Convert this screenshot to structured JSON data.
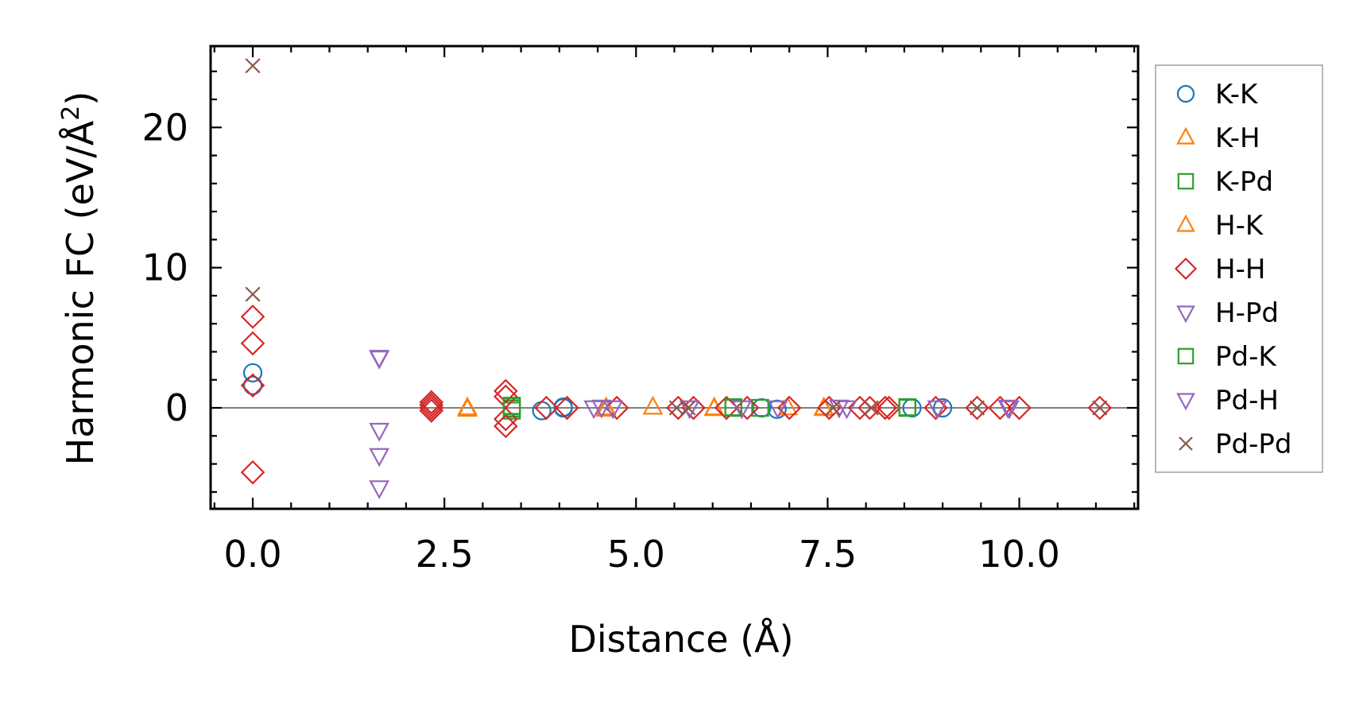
{
  "chart_data": {
    "type": "scatter",
    "xlabel": "Distance (Å)",
    "ylabel_main": "Harmonic FC (eV/Å",
    "ylabel_sup": "2",
    "ylabel_close": ")",
    "xlim": [
      -0.55,
      11.55
    ],
    "ylim": [
      -7.2,
      25.8
    ],
    "xticks": [
      0.0,
      2.5,
      5.0,
      7.5,
      10.0
    ],
    "xtick_labels": [
      "0.0",
      "2.5",
      "5.0",
      "7.5",
      "10.0"
    ],
    "yticks": [
      0,
      10,
      20
    ],
    "ytick_labels": [
      "0",
      "10",
      "20"
    ],
    "zero_line": 0,
    "grid": false,
    "legend_position": "outside-right",
    "series": [
      {
        "name": "K-K",
        "marker": "circle",
        "color": "#1f77b4",
        "points": [
          [
            0.0,
            2.5
          ],
          [
            0.0,
            1.6
          ],
          [
            3.77,
            -0.2
          ],
          [
            4.05,
            0.0
          ],
          [
            4.05,
            0.05
          ],
          [
            6.64,
            0.0
          ],
          [
            6.84,
            -0.1
          ],
          [
            8.6,
            0.0
          ],
          [
            9.0,
            0.0
          ]
        ]
      },
      {
        "name": "K-H",
        "marker": "triangle-up",
        "color": "#ff7f0e",
        "points": [
          [
            2.8,
            0.0
          ],
          [
            4.61,
            0.0
          ],
          [
            5.22,
            0.05
          ],
          [
            6.02,
            0.0
          ],
          [
            6.98,
            0.0
          ],
          [
            7.45,
            0.0
          ]
        ]
      },
      {
        "name": "K-Pd",
        "marker": "square",
        "color": "#2ca02c",
        "points": [
          [
            3.38,
            0.15
          ],
          [
            3.38,
            -0.05
          ],
          [
            3.38,
            -0.2
          ],
          [
            6.27,
            0.0
          ],
          [
            6.62,
            0.0
          ],
          [
            8.54,
            0.0
          ]
        ]
      },
      {
        "name": "H-K",
        "marker": "triangle-up",
        "color": "#ff7f0e",
        "points": [
          [
            2.8,
            -0.1
          ],
          [
            4.61,
            -0.1
          ],
          [
            6.02,
            -0.05
          ],
          [
            7.45,
            -0.05
          ]
        ]
      },
      {
        "name": "H-H",
        "marker": "diamond",
        "color": "#d62728",
        "points": [
          [
            0.0,
            6.5
          ],
          [
            0.0,
            4.6
          ],
          [
            0.0,
            1.6
          ],
          [
            0.0,
            -4.6
          ],
          [
            2.33,
            0.4
          ],
          [
            2.33,
            0.2
          ],
          [
            2.33,
            0.0
          ],
          [
            2.33,
            -0.2
          ],
          [
            3.3,
            1.2
          ],
          [
            3.3,
            0.8
          ],
          [
            3.3,
            -0.8
          ],
          [
            3.3,
            -1.3
          ],
          [
            3.83,
            0.0
          ],
          [
            4.1,
            0.0
          ],
          [
            4.75,
            0.0
          ],
          [
            5.55,
            0.0
          ],
          [
            5.75,
            0.0
          ],
          [
            6.18,
            0.0
          ],
          [
            6.45,
            0.0
          ],
          [
            7.0,
            0.0
          ],
          [
            7.52,
            0.0
          ],
          [
            7.92,
            0.0
          ],
          [
            8.05,
            0.0
          ],
          [
            8.25,
            0.0
          ],
          [
            8.3,
            0.0
          ],
          [
            8.91,
            0.0
          ],
          [
            9.45,
            0.0
          ],
          [
            9.75,
            0.0
          ],
          [
            10.0,
            0.0
          ],
          [
            11.05,
            0.0
          ]
        ]
      },
      {
        "name": "H-Pd",
        "marker": "triangle-down",
        "color": "#9467bd",
        "points": [
          [
            1.65,
            3.6
          ],
          [
            1.65,
            -1.6
          ],
          [
            1.65,
            -3.4
          ],
          [
            1.65,
            -5.7
          ],
          [
            4.45,
            0.0
          ],
          [
            4.7,
            0.0
          ],
          [
            5.7,
            0.0
          ],
          [
            6.38,
            0.0
          ],
          [
            6.85,
            0.0
          ],
          [
            7.75,
            0.0
          ],
          [
            8.93,
            0.0
          ],
          [
            9.87,
            0.0
          ]
        ]
      },
      {
        "name": "Pd-K",
        "marker": "square",
        "color": "#2ca02c",
        "points": [
          [
            3.38,
            0.1
          ],
          [
            6.27,
            0.05
          ],
          [
            8.54,
            0.05
          ]
        ]
      },
      {
        "name": "Pd-H",
        "marker": "triangle-down",
        "color": "#9467bd",
        "points": [
          [
            1.65,
            3.55
          ],
          [
            4.55,
            0.05
          ],
          [
            7.65,
            0.05
          ],
          [
            9.85,
            0.05
          ]
        ]
      },
      {
        "name": "Pd-Pd",
        "marker": "x",
        "color": "#8c564b",
        "points": [
          [
            0.0,
            24.4
          ],
          [
            0.0,
            8.1
          ],
          [
            5.53,
            0.0
          ],
          [
            5.68,
            0.0
          ],
          [
            7.57,
            0.0
          ],
          [
            8.07,
            0.0
          ],
          [
            9.45,
            0.0
          ],
          [
            11.05,
            0.0
          ]
        ]
      }
    ]
  }
}
